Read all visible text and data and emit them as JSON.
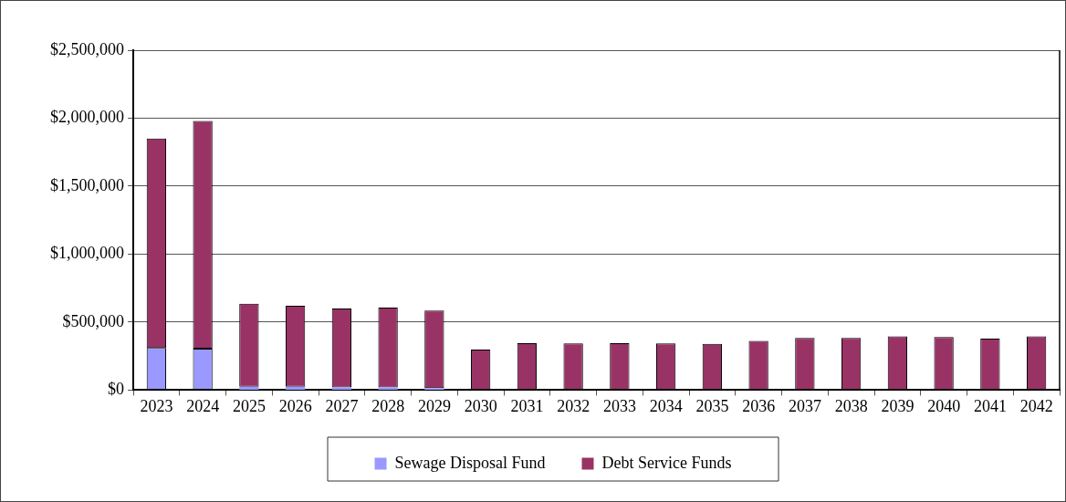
{
  "chart_data": {
    "type": "bar",
    "stacked": true,
    "categories": [
      "2023",
      "2024",
      "2025",
      "2026",
      "2027",
      "2028",
      "2029",
      "2030",
      "2031",
      "2032",
      "2033",
      "2034",
      "2035",
      "2036",
      "2037",
      "2038",
      "2039",
      "2040",
      "2041",
      "2042"
    ],
    "series": [
      {
        "name": "Sewage Disposal Fund",
        "color": "#9999ff",
        "values": [
          310000,
          305000,
          25000,
          25000,
          20000,
          20000,
          15000,
          0,
          0,
          0,
          0,
          0,
          0,
          0,
          0,
          0,
          0,
          0,
          0,
          0
        ]
      },
      {
        "name": "Debt Service Funds",
        "color": "#993366",
        "values": [
          1540000,
          1675000,
          610000,
          595000,
          580000,
          587000,
          570000,
          298000,
          345000,
          343000,
          345000,
          343000,
          340000,
          362000,
          384000,
          384000,
          395000,
          390000,
          379000,
          395000
        ]
      }
    ],
    "ylim": [
      0,
      2500000
    ],
    "yticks": [
      {
        "value": 0,
        "label": "$0"
      },
      {
        "value": 500000,
        "label": "$500,000"
      },
      {
        "value": 1000000,
        "label": "$1,000,000"
      },
      {
        "value": 1500000,
        "label": "$1,500,000"
      },
      {
        "value": 2000000,
        "label": "$2,000,000"
      },
      {
        "value": 2500000,
        "label": "$2,500,000"
      }
    ],
    "grid": "y",
    "legend": "bottom"
  }
}
